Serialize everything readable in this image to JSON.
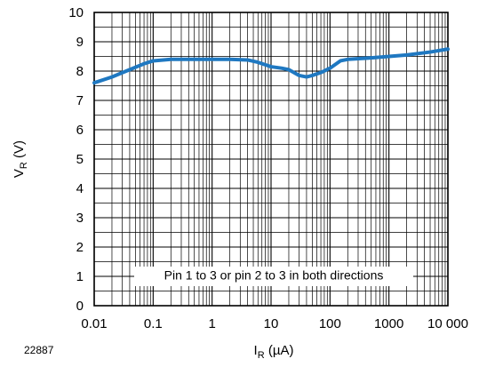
{
  "figure_id": "22887",
  "chart_data": {
    "type": "line",
    "xscale": "log",
    "xlim": [
      0.01,
      10000
    ],
    "ylim": [
      0,
      10
    ],
    "grid": true,
    "x_ticks": [
      "0.01",
      "0.1",
      "1",
      "10",
      "100",
      "1000",
      "10 000"
    ],
    "y_ticks": [
      "0",
      "1",
      "2",
      "3",
      "4",
      "5",
      "6",
      "7",
      "8",
      "9",
      "10"
    ],
    "xlabel": {
      "main": "I",
      "sub": "R",
      "unit": " (µA)"
    },
    "ylabel": {
      "main": "V",
      "sub": "R",
      "unit": " (V)"
    },
    "annotation": "Pin 1 to 3 or pin 2 to 3 in both directions",
    "line_color": "#1f78c1",
    "series": [
      {
        "x": [
          0.01,
          0.02,
          0.04,
          0.07,
          0.1,
          0.2,
          0.5,
          1,
          2,
          4,
          6,
          10,
          15,
          20,
          30,
          40,
          50,
          70,
          100,
          150,
          200,
          500,
          1000,
          2000,
          5000,
          10000
        ],
        "y": [
          7.6,
          7.8,
          8.05,
          8.25,
          8.35,
          8.4,
          8.4,
          8.4,
          8.4,
          8.38,
          8.3,
          8.15,
          8.1,
          8.05,
          7.85,
          7.8,
          7.85,
          7.95,
          8.1,
          8.35,
          8.4,
          8.45,
          8.5,
          8.55,
          8.65,
          8.75
        ]
      }
    ]
  }
}
